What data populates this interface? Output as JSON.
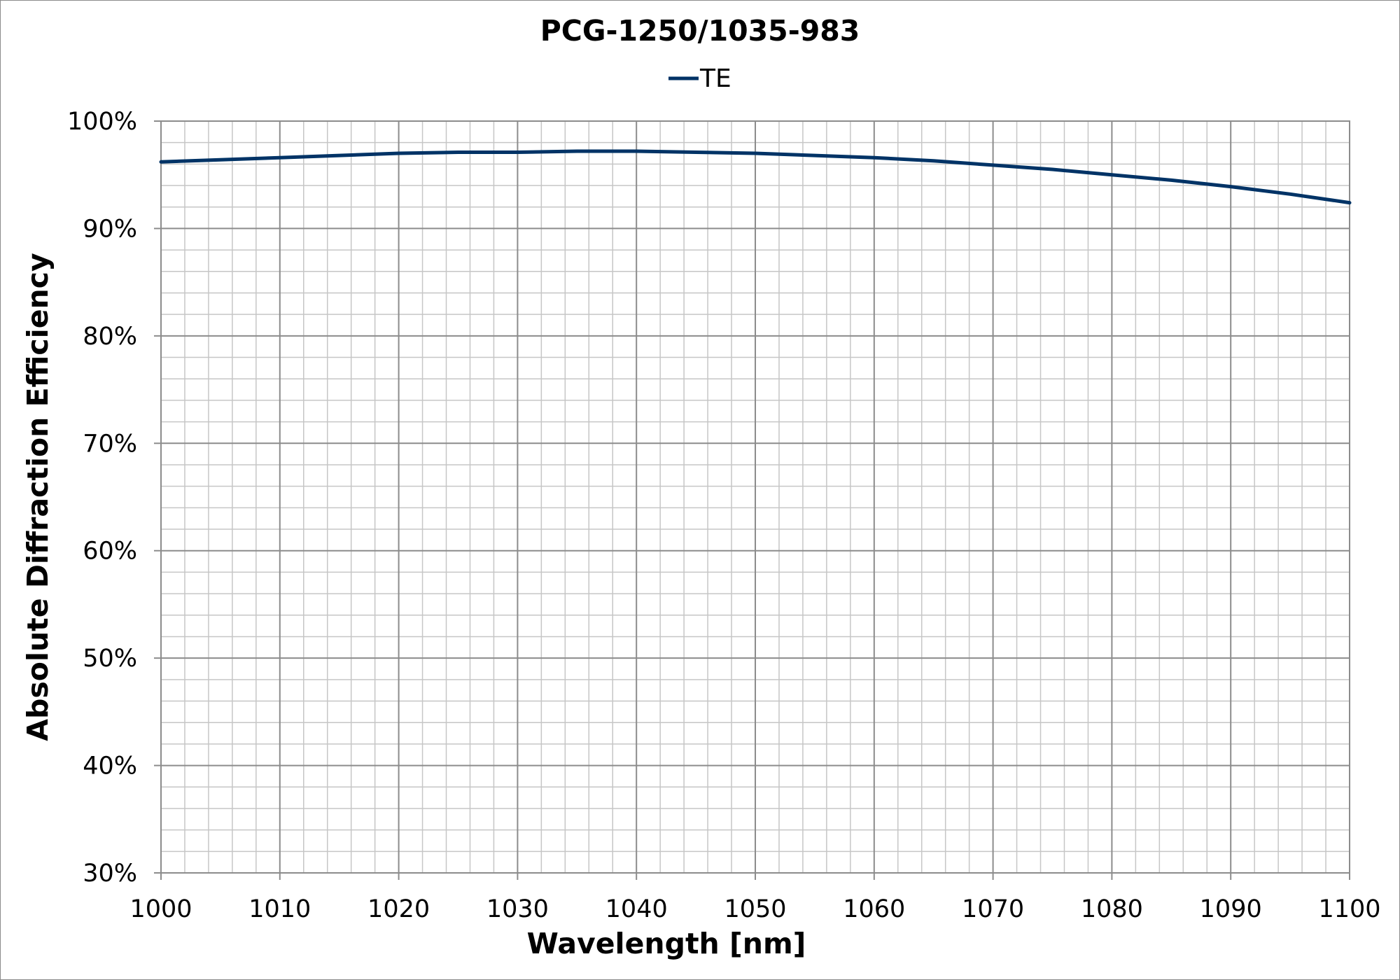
{
  "chart_data": {
    "type": "line",
    "title": "PCG-1250/1035-983",
    "xlabel": "Wavelength [nm]",
    "ylabel": "Absolute Diffraction Efficiency",
    "xlim": [
      1000,
      1100
    ],
    "ylim": [
      0.3,
      1.0
    ],
    "x_ticks": [
      1000,
      1010,
      1020,
      1030,
      1040,
      1050,
      1060,
      1070,
      1080,
      1090,
      1100
    ],
    "x_tick_labels": [
      "1000",
      "1010",
      "1020",
      "1030",
      "1040",
      "1050",
      "1060",
      "1070",
      "1080",
      "1090",
      "1100"
    ],
    "y_ticks": [
      0.3,
      0.4,
      0.5,
      0.6,
      0.7,
      0.8,
      0.9,
      1.0
    ],
    "y_tick_labels": [
      "30%",
      "40%",
      "50%",
      "60%",
      "70%",
      "80%",
      "90%",
      "100%"
    ],
    "grid": true,
    "minor_grid": true,
    "legend_position": "top-center",
    "series": [
      {
        "name": "TE",
        "color": "#003366",
        "x": [
          1000,
          1005,
          1010,
          1015,
          1020,
          1025,
          1030,
          1035,
          1040,
          1045,
          1050,
          1055,
          1060,
          1065,
          1070,
          1075,
          1080,
          1085,
          1090,
          1095,
          1100
        ],
        "y": [
          0.962,
          0.964,
          0.966,
          0.968,
          0.97,
          0.971,
          0.971,
          0.972,
          0.972,
          0.971,
          0.97,
          0.968,
          0.966,
          0.963,
          0.959,
          0.955,
          0.95,
          0.945,
          0.939,
          0.932,
          0.924
        ]
      }
    ]
  }
}
